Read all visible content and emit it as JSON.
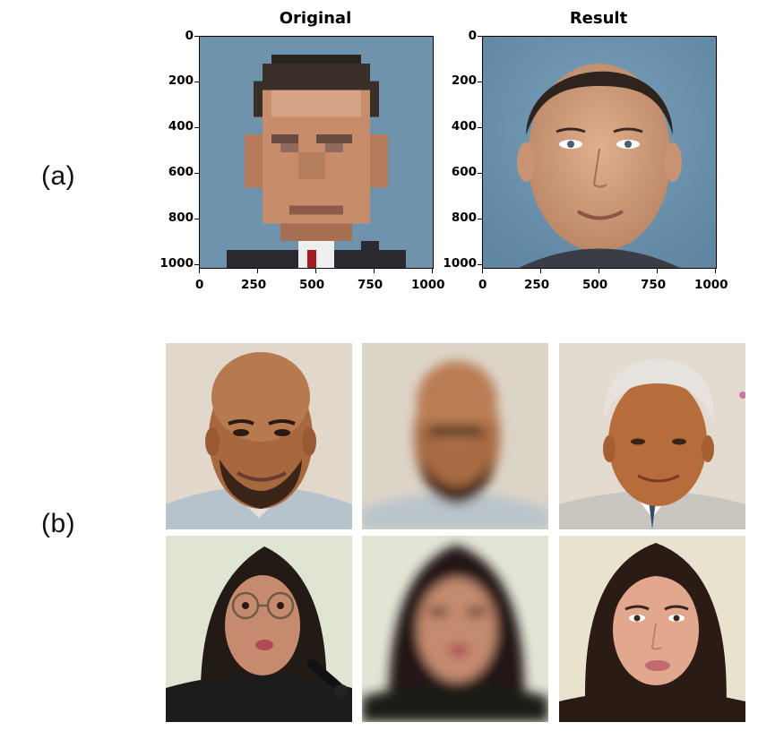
{
  "panel_a": {
    "label": "(a)",
    "plots": [
      {
        "title": "Original",
        "image": "pixelated-low-resolution-face"
      },
      {
        "title": "Result",
        "image": "upsampled-generated-face"
      }
    ],
    "y_ticks": [
      "0",
      "200",
      "400",
      "600",
      "800",
      "1000"
    ],
    "x_ticks": [
      "0",
      "250",
      "500",
      "750",
      "1000"
    ]
  },
  "panel_b": {
    "label": "(b)",
    "rows": [
      [
        "bald-bearded-man-photo",
        "blurred-man-photo",
        "gray-haired-man-photo"
      ],
      [
        "woman-with-glasses-photo",
        "blurred-woman-photo",
        "generated-woman-photo"
      ]
    ]
  },
  "colors": {
    "photo_background_blue": "#6f93ad",
    "photo_background_beige": "#dcd2c4",
    "skin_tone": "#c98f6c"
  }
}
